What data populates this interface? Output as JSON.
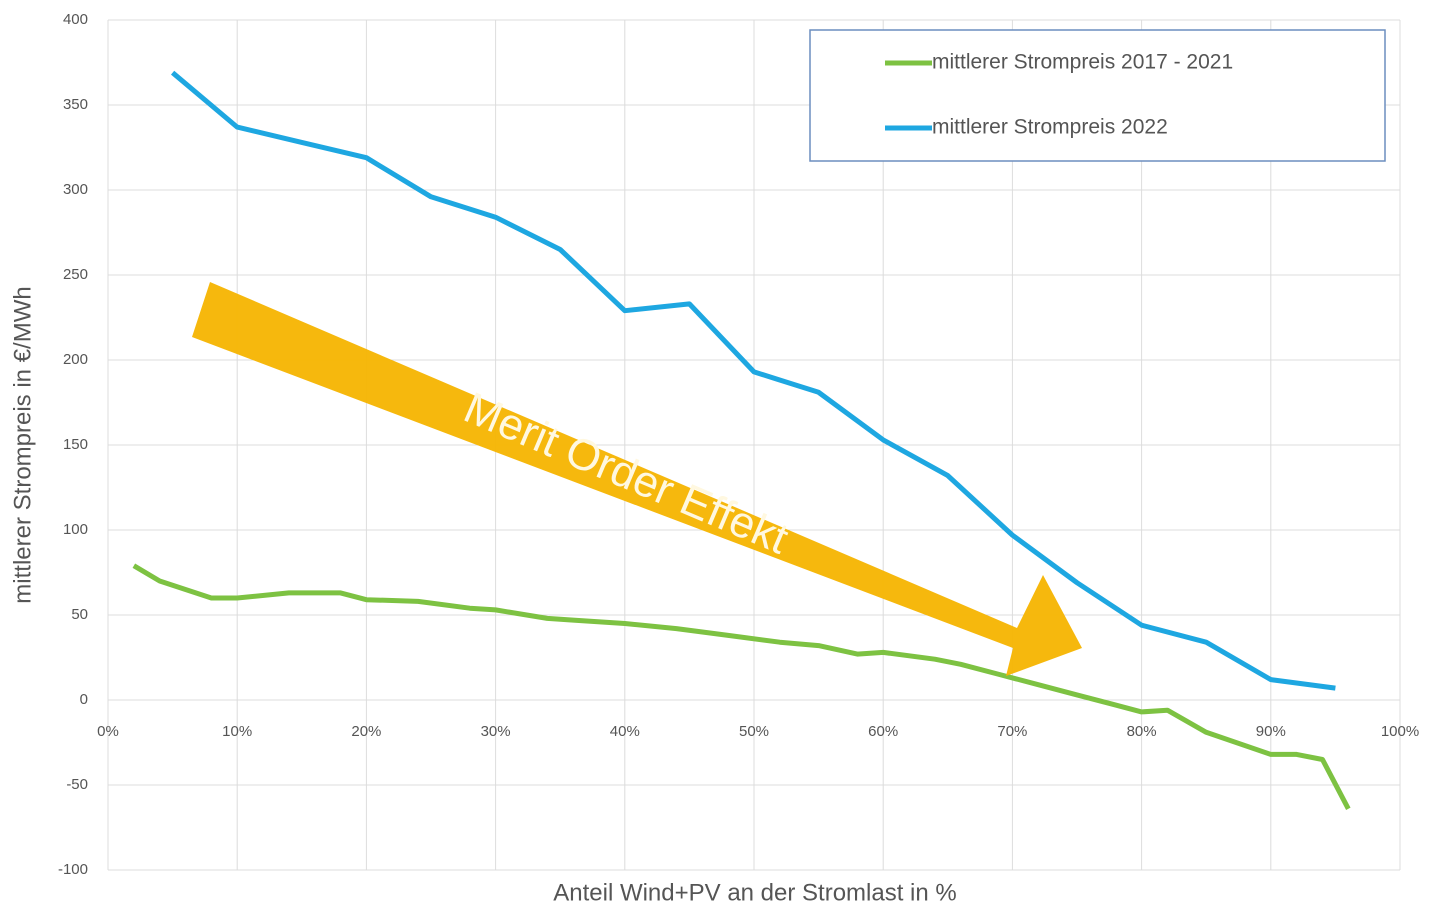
{
  "chart_data": {
    "type": "line",
    "x_label": "Anteil Wind+PV an der Stromlast in %",
    "y_label": "mittlerer Strompreis in €/MWh",
    "annotation": "Merit Order Effekt",
    "xlim": [
      0,
      100
    ],
    "xticks": [
      {
        "value": 0,
        "label": "0%"
      },
      {
        "value": 10,
        "label": "10%"
      },
      {
        "value": 20,
        "label": "20%"
      },
      {
        "value": 30,
        "label": "30%"
      },
      {
        "value": 40,
        "label": "40%"
      },
      {
        "value": 50,
        "label": "50%"
      },
      {
        "value": 60,
        "label": "60%"
      },
      {
        "value": 70,
        "label": "70%"
      },
      {
        "value": 80,
        "label": "80%"
      },
      {
        "value": 90,
        "label": "90%"
      },
      {
        "value": 100,
        "label": "100%"
      }
    ],
    "ylim": [
      -100,
      400
    ],
    "yticks": [
      -100,
      -50,
      0,
      50,
      100,
      150,
      200,
      250,
      300,
      350,
      400
    ],
    "grid": true,
    "legend": "top-right",
    "series": [
      {
        "name": "mittlerer Strompreis 2017 - 2021",
        "color": "#7dc242",
        "x": [
          2,
          4,
          6,
          8,
          10,
          14,
          18,
          20,
          24,
          28,
          30,
          34,
          36,
          40,
          44,
          48,
          52,
          55,
          58,
          60,
          64,
          66,
          69,
          72,
          75,
          78,
          80,
          82,
          85,
          90,
          92,
          94,
          96
        ],
        "values": [
          79,
          70,
          65,
          60,
          60,
          63,
          63,
          59,
          58,
          54,
          53,
          48,
          47,
          45,
          42,
          38,
          34,
          32,
          27,
          28,
          24,
          21,
          15,
          9,
          3,
          -3,
          -7,
          -6,
          -19,
          -32,
          -32,
          -35,
          -64
        ]
      },
      {
        "name": "mittlerer Strompreis 2022",
        "color": "#1ea7e1",
        "x": [
          5,
          10,
          15,
          20,
          25,
          30,
          35,
          40,
          45,
          50,
          55,
          60,
          65,
          70,
          75,
          80,
          85,
          90,
          95
        ],
        "values": [
          369,
          337,
          328,
          319,
          296,
          284,
          265,
          229,
          233,
          193,
          181,
          153,
          132,
          97,
          69,
          44,
          34,
          12,
          7
        ]
      }
    ]
  }
}
